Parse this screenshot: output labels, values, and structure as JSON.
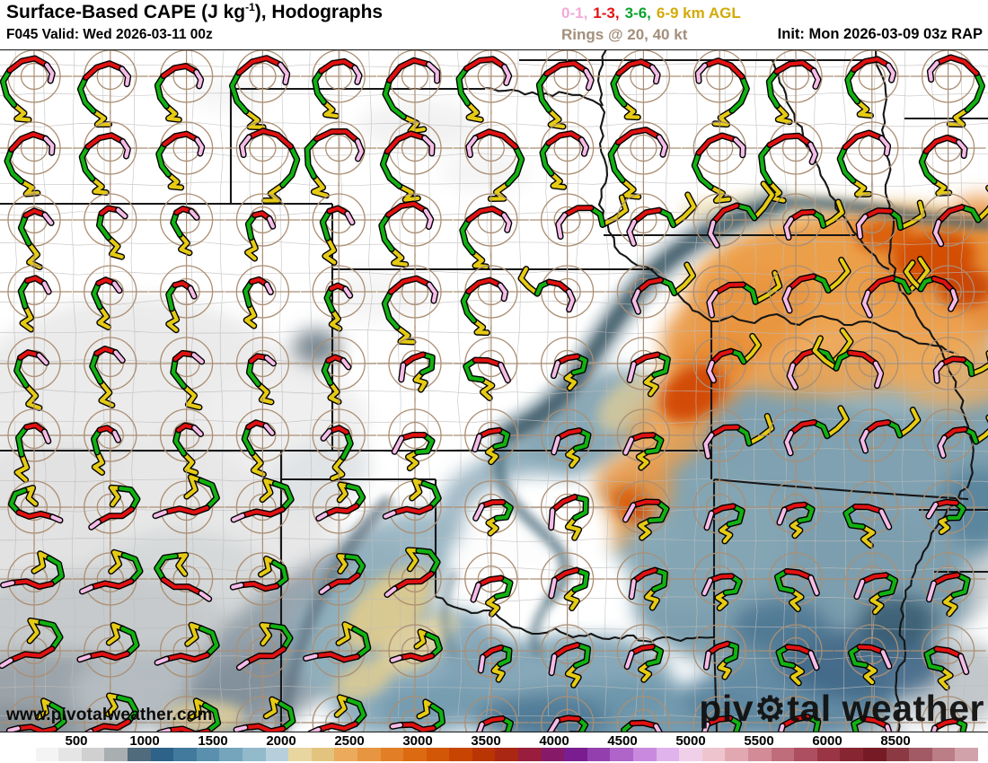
{
  "header": {
    "title": {
      "prefix": "Surface-Based CAPE (J kg",
      "superscript": "-1",
      "suffix": "), Hodographs"
    },
    "subtitle": "F045 Valid: Wed 2026-03-11 00z",
    "init_label": "Init: Mon 2026-03-09 03z RAP",
    "legend": {
      "items": [
        {
          "label": "0-1,",
          "color": "#f2aada"
        },
        {
          "label": "1-3,",
          "color": "#e51212"
        },
        {
          "label": "3-6,",
          "color": "#0aa32b"
        },
        {
          "label": "6-9 km AGL",
          "color": "#d2ab06"
        }
      ],
      "rings_label": "Rings @ 20, 40 kt",
      "rings_color": "#a38f7b",
      "ring_values_kt": [
        20,
        40
      ]
    }
  },
  "map": {
    "watermark": "www.pivotalweather.com",
    "logo": {
      "pre": "piv",
      "gear_icon": "⚙",
      "post": "tal weather"
    },
    "hodographs": {
      "levels": [
        {
          "range_km": "0-1",
          "color": "#f6bce8"
        },
        {
          "range_km": "1-3",
          "color": "#e11111"
        },
        {
          "range_km": "3-6",
          "color": "#12b112"
        },
        {
          "range_km": "6-9",
          "color": "#e6cb14"
        }
      ],
      "ring_color": "#ab8f74",
      "rings_kt": [
        20,
        40
      ]
    }
  },
  "colorbar": {
    "unit": "J kg-1",
    "tick_labels": [
      "500",
      "1000",
      "1500",
      "2000",
      "2500",
      "3000",
      "3500",
      "4000",
      "4500",
      "5000",
      "5500",
      "6000",
      "8500"
    ],
    "cells": [
      "#ffffff",
      "#f4f4f4",
      "#e5e5e5",
      "#d0d0d0",
      "#a9aeb1",
      "#4f6b7c",
      "#2e6288",
      "#417a9c",
      "#5a90ae",
      "#74a5bd",
      "#92bacb",
      "#b6cfdb",
      "#e8d5a0",
      "#e2c47e",
      "#ebaa5c",
      "#e79540",
      "#e27f26",
      "#dc6a11",
      "#d25706",
      "#c74500",
      "#b93504",
      "#aa2713",
      "#991d3c",
      "#861968",
      "#7a1d90",
      "#9340ae",
      "#ae64c8",
      "#c98ade",
      "#e0b3ec",
      "#f0d0e9",
      "#eec5ce",
      "#e2a8b2",
      "#d28b97",
      "#c06d7b",
      "#ad4f60",
      "#9a3545",
      "#872531",
      "#761b25",
      "#8b3a43",
      "#a25a64",
      "#bb7d86",
      "#d2a2aa"
    ]
  }
}
